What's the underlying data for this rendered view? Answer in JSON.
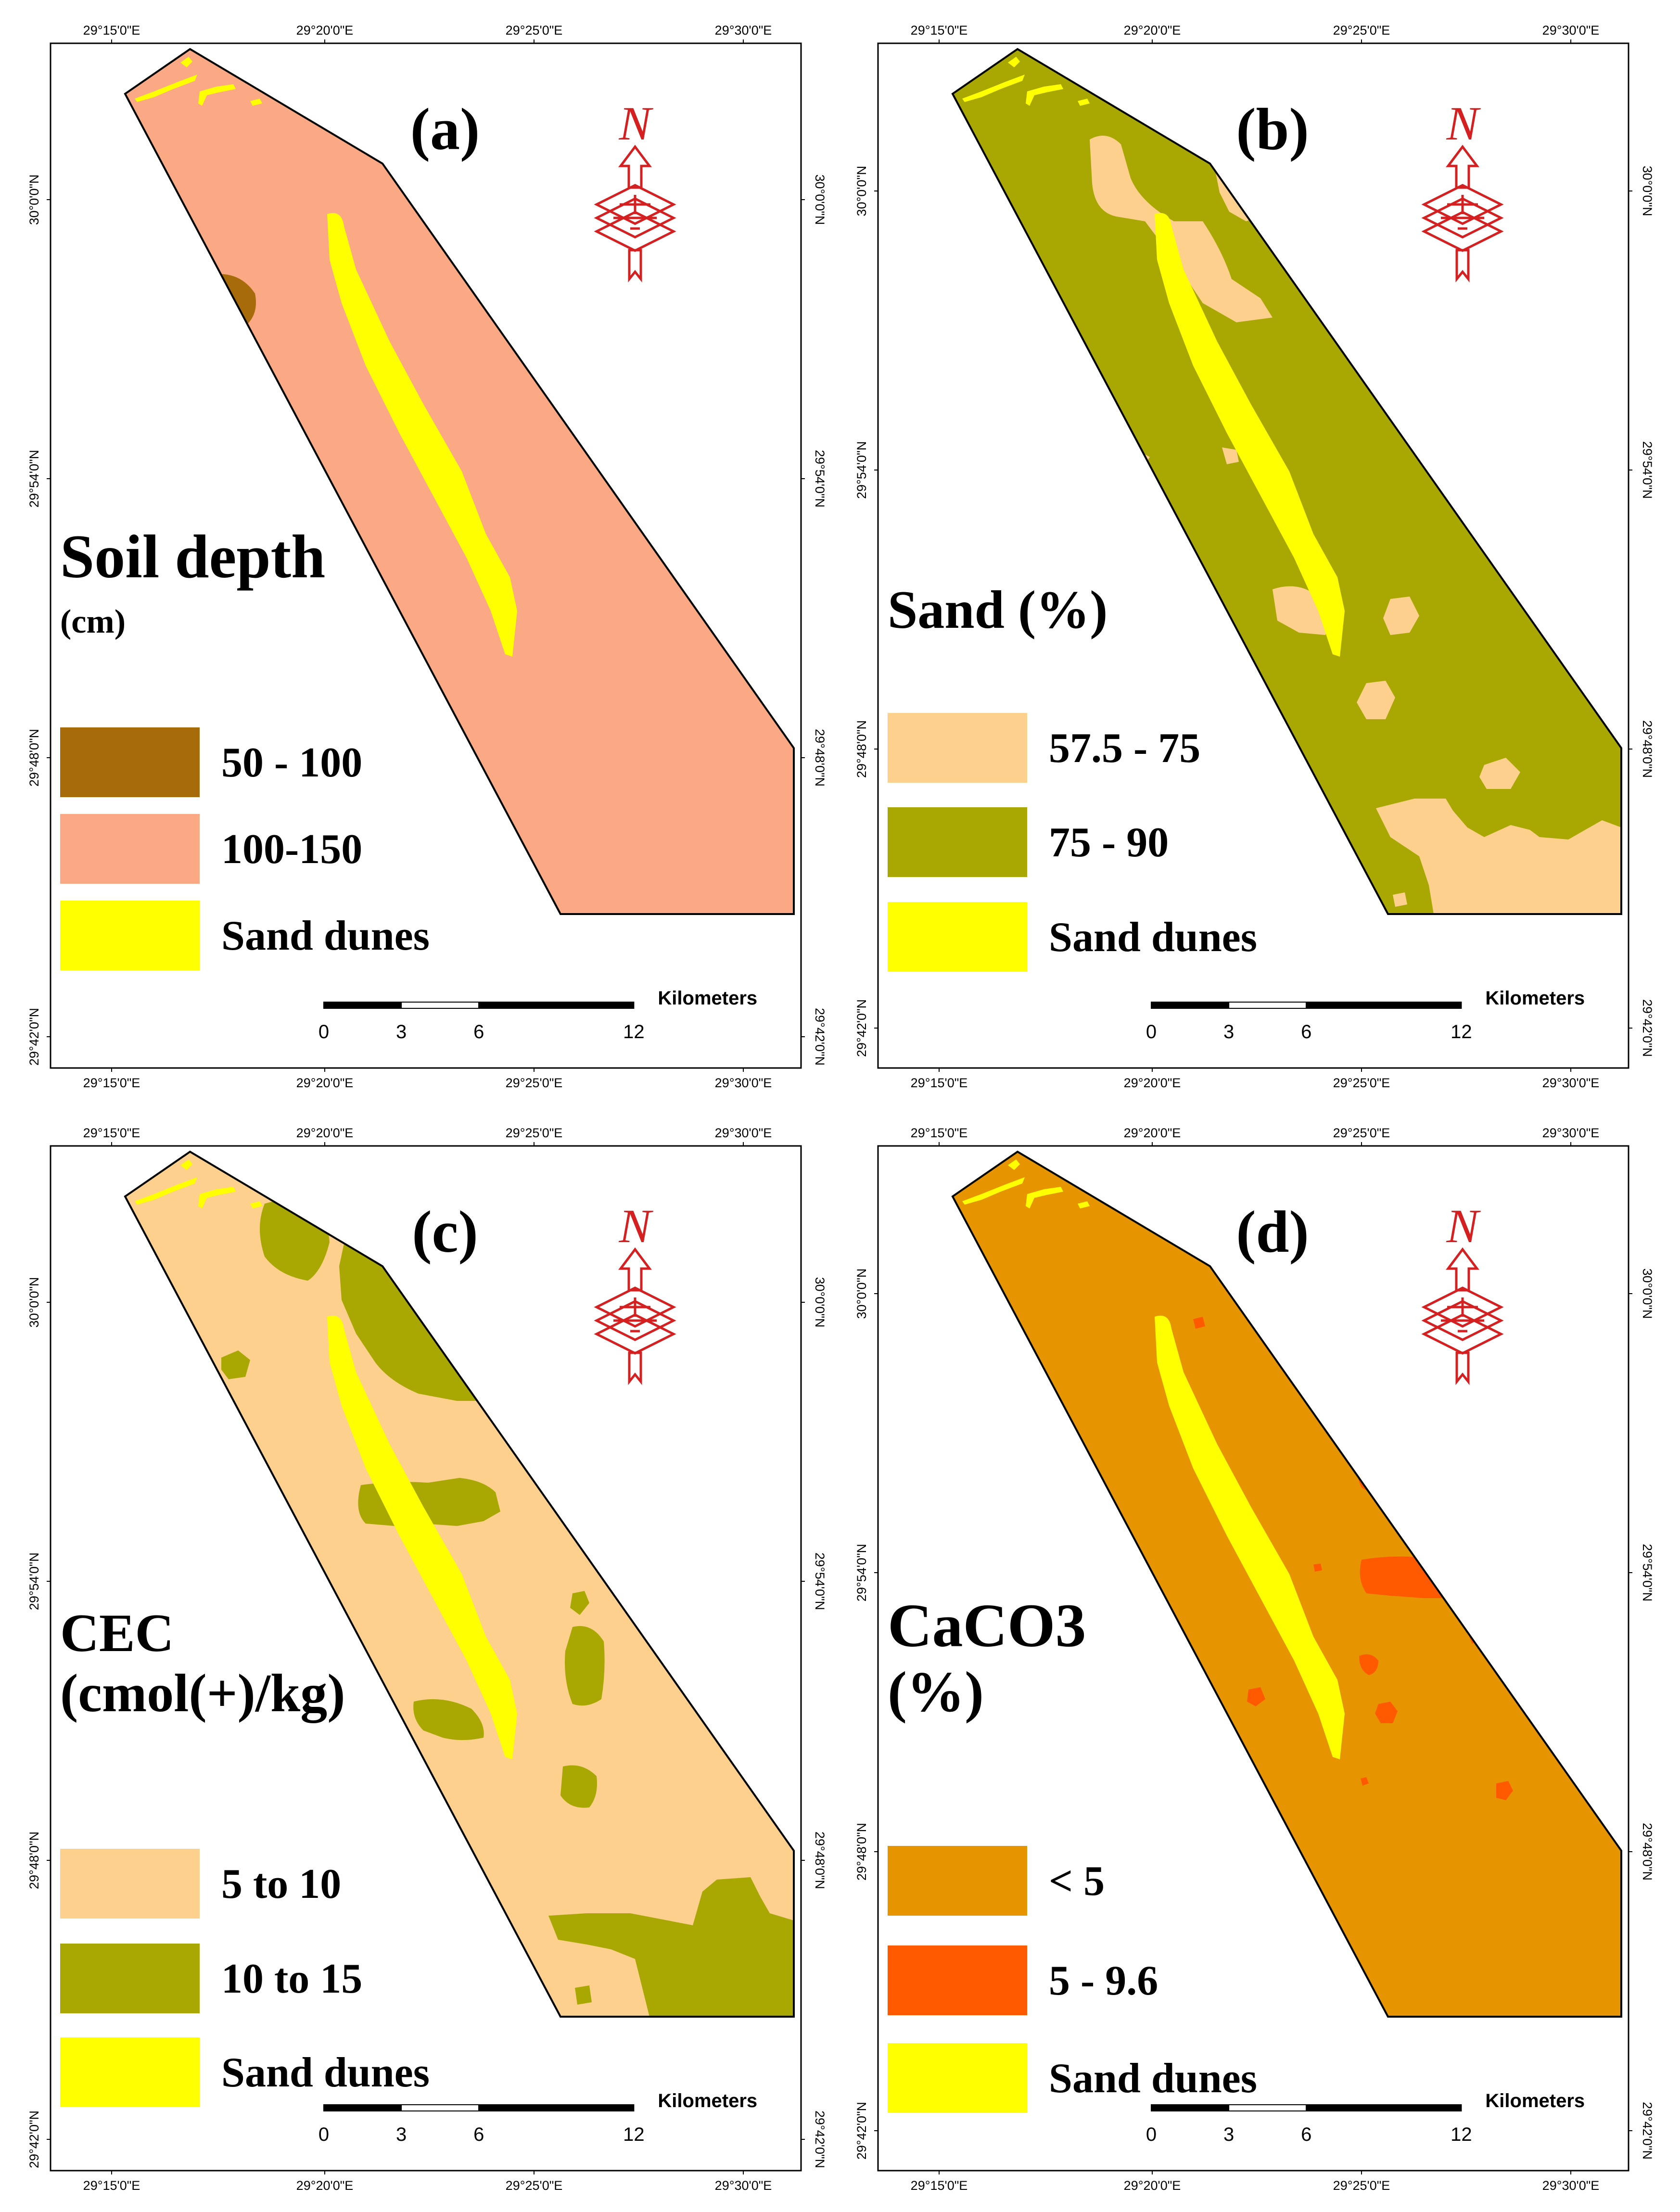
{
  "colors": {
    "sand_dunes": "#ffff00",
    "frame": "#000000",
    "north_arrow": "#d42020"
  },
  "shared": {
    "lon_ticks": [
      "29°15'0\"E",
      "29°20'0\"E",
      "29°25'0\"E",
      "29°30'0\"E"
    ],
    "lat_ticks": [
      "30°0'0\"N",
      "29°54'0\"N",
      "29°48'0\"N",
      "29°42'0\"N"
    ],
    "scale_bar": {
      "unit": "Kilometers",
      "labels": [
        "0",
        "3",
        "6",
        "12"
      ]
    },
    "north_letter": "N",
    "north_arrow_icon": "north-arrow-icon"
  },
  "panels": [
    {
      "id": "a",
      "label": "(a)",
      "legend_title": [
        "Soil depth",
        "(cm)"
      ],
      "background_color": "#fba985",
      "patch_color": "#a86b0a",
      "legend_items": [
        {
          "label": "50 - 100",
          "color": "#a86b0a"
        },
        {
          "label": "100-150",
          "color": "#fba985"
        },
        {
          "label": "Sand dunes",
          "color": "#ffff00"
        }
      ]
    },
    {
      "id": "b",
      "label": "(b)",
      "legend_title": [
        "Sand (%)"
      ],
      "background_color": "#a9a803",
      "patch_color": "#fdd08d",
      "legend_items": [
        {
          "label": "57.5 - 75",
          "color": "#fdd08d"
        },
        {
          "label": "75 - 90",
          "color": "#a9a803"
        },
        {
          "label": "Sand dunes",
          "color": "#ffff00"
        }
      ]
    },
    {
      "id": "c",
      "label": "(c)",
      "legend_title": [
        "CEC",
        "(cmol(+)/kg)"
      ],
      "background_color": "#fdd08d",
      "patch_color": "#a9a803",
      "legend_items": [
        {
          "label": "5 to 10",
          "color": "#fdd08d"
        },
        {
          "label": "10 to 15",
          "color": "#a9a803"
        },
        {
          "label": "Sand dunes",
          "color": "#ffff00"
        }
      ]
    },
    {
      "id": "d",
      "label": "(d)",
      "legend_title": [
        "CaCO3",
        "(%)"
      ],
      "background_color": "#e69500",
      "patch_color": "#ff5a00",
      "legend_items": [
        {
          "label": "< 5",
          "color": "#e69500"
        },
        {
          "label": "5 - 9.6",
          "color": "#ff5a00"
        },
        {
          "label": "Sand dunes",
          "color": "#ffff00"
        }
      ]
    }
  ]
}
